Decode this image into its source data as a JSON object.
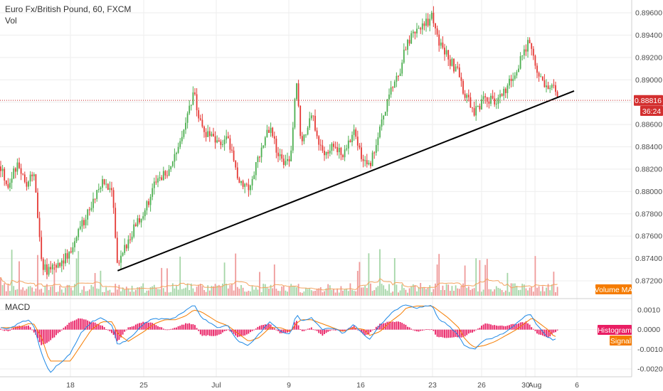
{
  "chart_data": [
    {
      "type": "candlestick",
      "title": "Euro Fx/British Pound, 60, FXCM",
      "volume_label": "Vol",
      "volume_ma_label": "Volume MA",
      "current_price_label": "0.88816",
      "current_price": 0.88816,
      "countdown_label": "36:24",
      "ylim": [
        0.8711,
        0.8971
      ],
      "y_ticks": [
        "0.89600",
        "0.89400",
        "0.89200",
        "0.89000",
        "0.88800",
        "0.88600",
        "0.88400",
        "0.88200",
        "0.88000",
        "0.87800",
        "0.87600",
        "0.87400",
        "0.87200"
      ],
      "x_ticks": [
        "18",
        "25",
        "Jul",
        "9",
        "16",
        "23",
        "26",
        "30",
        "Aug",
        "6"
      ],
      "price_path": [
        {
          "x": "Jun 11 00:00",
          "y": 0.8832
        },
        {
          "x": "Jun 12 00:00",
          "y": 0.8805
        },
        {
          "x": "Jun 13 00:00",
          "y": 0.8825
        },
        {
          "x": "Jun 14 00:00",
          "y": 0.8805
        },
        {
          "x": "Jun 14 12:00",
          "y": 0.882
        },
        {
          "x": "Jun 15 06:00",
          "y": 0.8735
        },
        {
          "x": "Jun 16 00:00",
          "y": 0.8728
        },
        {
          "x": "Jun 18 00:00",
          "y": 0.8745
        },
        {
          "x": "Jun 19 00:00",
          "y": 0.8768
        },
        {
          "x": "Jun 20 00:00",
          "y": 0.879
        },
        {
          "x": "Jun 21 00:00",
          "y": 0.8808
        },
        {
          "x": "Jun 22 00:00",
          "y": 0.8798
        },
        {
          "x": "Jun 22 12:00",
          "y": 0.8729
        },
        {
          "x": "Jun 23 12:00",
          "y": 0.8758
        },
        {
          "x": "Jun 25 00:00",
          "y": 0.8782
        },
        {
          "x": "Jun 26 00:00",
          "y": 0.8805
        },
        {
          "x": "Jun 27 00:00",
          "y": 0.8815
        },
        {
          "x": "Jun 28 00:00",
          "y": 0.883
        },
        {
          "x": "Jun 29 00:00",
          "y": 0.8865
        },
        {
          "x": "Jun 29 18:00",
          "y": 0.8888
        },
        {
          "x": "Jun 30 12:00",
          "y": 0.8855
        },
        {
          "x": "Jul 02 00:00",
          "y": 0.8842
        },
        {
          "x": "Jul 03 00:00",
          "y": 0.8848
        },
        {
          "x": "Jul 04 00:00",
          "y": 0.8812
        },
        {
          "x": "Jul 05 00:00",
          "y": 0.8804
        },
        {
          "x": "Jul 06 00:00",
          "y": 0.8832
        },
        {
          "x": "Jul 07 00:00",
          "y": 0.8858
        },
        {
          "x": "Jul 08 00:00",
          "y": 0.8828
        },
        {
          "x": "Jul 09 00:00",
          "y": 0.883
        },
        {
          "x": "Jul 09 12:00",
          "y": 0.89
        },
        {
          "x": "Jul 10 00:00",
          "y": 0.884
        },
        {
          "x": "Jul 11 00:00",
          "y": 0.8868
        },
        {
          "x": "Jul 12 00:00",
          "y": 0.8835
        },
        {
          "x": "Jul 13 00:00",
          "y": 0.8842
        },
        {
          "x": "Jul 14 00:00",
          "y": 0.883
        },
        {
          "x": "Jul 15 00:00",
          "y": 0.8858
        },
        {
          "x": "Jul 16 00:00",
          "y": 0.8825
        },
        {
          "x": "Jul 16 12:00",
          "y": 0.882
        },
        {
          "x": "Jul 17 12:00",
          "y": 0.8855
        },
        {
          "x": "Jul 18 12:00",
          "y": 0.8888
        },
        {
          "x": "Jul 19 12:00",
          "y": 0.8912
        },
        {
          "x": "Jul 20 00:00",
          "y": 0.893
        },
        {
          "x": "Jul 21 00:00",
          "y": 0.8945
        },
        {
          "x": "Jul 22 00:00",
          "y": 0.8952
        },
        {
          "x": "Jul 22 12:00",
          "y": 0.8957
        },
        {
          "x": "Jul 23 00:00",
          "y": 0.8935
        },
        {
          "x": "Jul 24 00:00",
          "y": 0.892
        },
        {
          "x": "Jul 25 00:00",
          "y": 0.8905
        },
        {
          "x": "Jul 25 12:00",
          "y": 0.8885
        },
        {
          "x": "Jul 26 00:00",
          "y": 0.8882
        },
        {
          "x": "Jul 26 12:00",
          "y": 0.887
        },
        {
          "x": "Jul 27 12:00",
          "y": 0.8885
        },
        {
          "x": "Jul 28 12:00",
          "y": 0.888
        },
        {
          "x": "Jul 29 12:00",
          "y": 0.8892
        },
        {
          "x": "Jul 30 12:00",
          "y": 0.891
        },
        {
          "x": "Jul 31 12:00",
          "y": 0.8932
        },
        {
          "x": "Aug 01 00:00",
          "y": 0.8925
        },
        {
          "x": "Aug 01 12:00",
          "y": 0.8905
        },
        {
          "x": "Aug 02 12:00",
          "y": 0.8888
        },
        {
          "x": "Aug 03 00:00",
          "y": 0.8892
        },
        {
          "x": "Aug 03 12:00",
          "y": 0.88816
        }
      ],
      "trendline": [
        {
          "x": "Jun 22 12:00",
          "y": 0.8729
        },
        {
          "x": "Aug 05 00:00",
          "y": 0.889
        }
      ]
    },
    {
      "type": "line",
      "title": "MACD",
      "ylim": [
        -0.0024,
        0.0015
      ],
      "y_ticks": [
        "0.0010",
        "0.0000",
        "-0.0010",
        "-0.0020"
      ],
      "histogram_label": "Histogram",
      "histogram_value": "0.0000",
      "signal_label": "Signal",
      "series_points": [
        {
          "x": "Jun 11 00:00",
          "macd": 0.0002,
          "signal": 0.0001,
          "hist": 0.0001
        },
        {
          "x": "Jun 12 00:00",
          "macd": 0.0,
          "signal": 0.0001,
          "hist": -0.0001
        },
        {
          "x": "Jun 13 00:00",
          "macd": 0.0003,
          "signal": 0.0001,
          "hist": 0.0002
        },
        {
          "x": "Jun 14 00:00",
          "macd": 0.0005,
          "signal": 0.0003,
          "hist": 0.0002
        },
        {
          "x": "Jun 14 12:00",
          "macd": 0.0002,
          "signal": 0.0003,
          "hist": -0.0001
        },
        {
          "x": "Jun 15 06:00",
          "macd": -0.0012,
          "signal": -0.0004,
          "hist": -0.0008
        },
        {
          "x": "Jun 16 00:00",
          "macd": -0.0022,
          "signal": -0.0016,
          "hist": -0.0006
        },
        {
          "x": "Jun 18 00:00",
          "macd": -0.0012,
          "signal": -0.0016,
          "hist": 0.0004
        },
        {
          "x": "Jun 19 00:00",
          "macd": -0.0002,
          "signal": -0.0008,
          "hist": 0.0006
        },
        {
          "x": "Jun 20 00:00",
          "macd": 0.0004,
          "signal": 0.0,
          "hist": 0.0004
        },
        {
          "x": "Jun 21 00:00",
          "macd": 0.0006,
          "signal": 0.0004,
          "hist": 0.0002
        },
        {
          "x": "Jun 22 00:00",
          "macd": 0.0002,
          "signal": 0.0004,
          "hist": -0.0002
        },
        {
          "x": "Jun 22 12:00",
          "macd": -0.0008,
          "signal": -0.0002,
          "hist": -0.0006
        },
        {
          "x": "Jun 23 12:00",
          "macd": -0.0005,
          "signal": -0.0006,
          "hist": 0.0001
        },
        {
          "x": "Jun 25 00:00",
          "macd": 0.0003,
          "signal": -0.0001,
          "hist": 0.0004
        },
        {
          "x": "Jun 26 00:00",
          "macd": 0.0006,
          "signal": 0.0003,
          "hist": 0.0003
        },
        {
          "x": "Jun 27 00:00",
          "macd": 0.0005,
          "signal": 0.0005,
          "hist": 0.0
        },
        {
          "x": "Jun 28 00:00",
          "macd": 0.0006,
          "signal": 0.0005,
          "hist": 0.0001
        },
        {
          "x": "Jun 29 00:00",
          "macd": 0.001,
          "signal": 0.0007,
          "hist": 0.0003
        },
        {
          "x": "Jun 29 18:00",
          "macd": 0.0013,
          "signal": 0.001,
          "hist": 0.0003
        },
        {
          "x": "Jun 30 12:00",
          "macd": 0.0006,
          "signal": 0.0009,
          "hist": -0.0003
        },
        {
          "x": "Jul 02 00:00",
          "macd": 0.0001,
          "signal": 0.0004,
          "hist": -0.0003
        },
        {
          "x": "Jul 03 00:00",
          "macd": 0.0002,
          "signal": 0.0002,
          "hist": 0.0
        },
        {
          "x": "Jul 04 00:00",
          "macd": -0.0006,
          "signal": -0.0002,
          "hist": -0.0004
        },
        {
          "x": "Jul 05 00:00",
          "macd": -0.0008,
          "signal": -0.0006,
          "hist": -0.0002
        },
        {
          "x": "Jul 06 00:00",
          "macd": -0.0002,
          "signal": -0.0004,
          "hist": 0.0002
        },
        {
          "x": "Jul 07 00:00",
          "macd": 0.0004,
          "signal": 0.0001,
          "hist": 0.0003
        },
        {
          "x": "Jul 08 00:00",
          "macd": -0.0001,
          "signal": 0.0001,
          "hist": -0.0002
        },
        {
          "x": "Jul 09 00:00",
          "macd": -0.0002,
          "signal": -0.0001,
          "hist": -0.0001
        },
        {
          "x": "Jul 09 12:00",
          "macd": 0.0008,
          "signal": 0.0003,
          "hist": 0.0005
        },
        {
          "x": "Jul 10 00:00",
          "macd": 0.0004,
          "signal": 0.0005,
          "hist": -0.0001
        },
        {
          "x": "Jul 11 00:00",
          "macd": 0.0006,
          "signal": 0.0005,
          "hist": 0.0001
        },
        {
          "x": "Jul 12 00:00",
          "macd": 0.0,
          "signal": 0.0003,
          "hist": -0.0003
        },
        {
          "x": "Jul 13 00:00",
          "macd": 0.0001,
          "signal": 0.0001,
          "hist": 0.0
        },
        {
          "x": "Jul 14 00:00",
          "macd": -0.0002,
          "signal": -0.0001,
          "hist": -0.0001
        },
        {
          "x": "Jul 15 00:00",
          "macd": 0.0003,
          "signal": 0.0001,
          "hist": 0.0002
        },
        {
          "x": "Jul 16 00:00",
          "macd": -0.0003,
          "signal": 0.0,
          "hist": -0.0003
        },
        {
          "x": "Jul 16 12:00",
          "macd": -0.0005,
          "signal": -0.0003,
          "hist": -0.0002
        },
        {
          "x": "Jul 17 12:00",
          "macd": 0.0002,
          "signal": -0.0001,
          "hist": 0.0003
        },
        {
          "x": "Jul 18 12:00",
          "macd": 0.0008,
          "signal": 0.0004,
          "hist": 0.0004
        },
        {
          "x": "Jul 19 12:00",
          "macd": 0.0012,
          "signal": 0.0008,
          "hist": 0.0004
        },
        {
          "x": "Jul 20 00:00",
          "macd": 0.0013,
          "signal": 0.0011,
          "hist": 0.0002
        },
        {
          "x": "Jul 21 00:00",
          "macd": 0.0011,
          "signal": 0.0012,
          "hist": -0.0001
        },
        {
          "x": "Jul 22 00:00",
          "macd": 0.0012,
          "signal": 0.0012,
          "hist": 0.0
        },
        {
          "x": "Jul 22 12:00",
          "macd": 0.0012,
          "signal": 0.0012,
          "hist": 0.0
        },
        {
          "x": "Jul 23 00:00",
          "macd": 0.0006,
          "signal": 0.001,
          "hist": -0.0004
        },
        {
          "x": "Jul 24 00:00",
          "macd": 0.0002,
          "signal": 0.0006,
          "hist": -0.0004
        },
        {
          "x": "Jul 25 00:00",
          "macd": -0.0003,
          "signal": 0.0001,
          "hist": -0.0004
        },
        {
          "x": "Jul 25 12:00",
          "macd": -0.0008,
          "signal": -0.0004,
          "hist": -0.0004
        },
        {
          "x": "Jul 26 00:00",
          "macd": -0.0009,
          "signal": -0.0007,
          "hist": -0.0002
        },
        {
          "x": "Jul 26 12:00",
          "macd": -0.001,
          "signal": -0.0009,
          "hist": -0.0001
        },
        {
          "x": "Jul 27 12:00",
          "macd": -0.0005,
          "signal": -0.0008,
          "hist": 0.0003
        },
        {
          "x": "Jul 28 12:00",
          "macd": -0.0004,
          "signal": -0.0006,
          "hist": 0.0002
        },
        {
          "x": "Jul 29 12:00",
          "macd": -0.0001,
          "signal": -0.0003,
          "hist": 0.0002
        },
        {
          "x": "Jul 30 12:00",
          "macd": 0.0003,
          "signal": 0.0,
          "hist": 0.0003
        },
        {
          "x": "Jul 31 12:00",
          "macd": 0.0008,
          "signal": 0.0004,
          "hist": 0.0004
        },
        {
          "x": "Aug 01 00:00",
          "macd": 0.0007,
          "signal": 0.0006,
          "hist": 0.0001
        },
        {
          "x": "Aug 01 12:00",
          "macd": 0.0002,
          "signal": 0.0004,
          "hist": -0.0002
        },
        {
          "x": "Aug 02 12:00",
          "macd": -0.0004,
          "signal": 0.0,
          "hist": -0.0004
        },
        {
          "x": "Aug 03 00:00",
          "macd": -0.0005,
          "signal": -0.0003,
          "hist": -0.0002
        },
        {
          "x": "Aug 03 12:00",
          "macd": -0.0004,
          "signal": -0.0004,
          "hist": 0.0
        }
      ]
    }
  ],
  "colors": {
    "up": "#4caf50",
    "down": "#e53935",
    "volume_up": "#a5d6a7",
    "volume_down": "#ef9a9a",
    "volume_ma": "#f4a460",
    "price_badge": "#d32f2f",
    "price_line": "#c62828",
    "macd_line": "#1e88e5",
    "signal_line": "#f57c00",
    "histogram": "#e91e63",
    "histogram_badge": "#e91e63",
    "signal_badge": "#f57c00",
    "volume_ma_badge": "#f57c00",
    "trendline": "#000000",
    "grid": "#eeeeee"
  }
}
